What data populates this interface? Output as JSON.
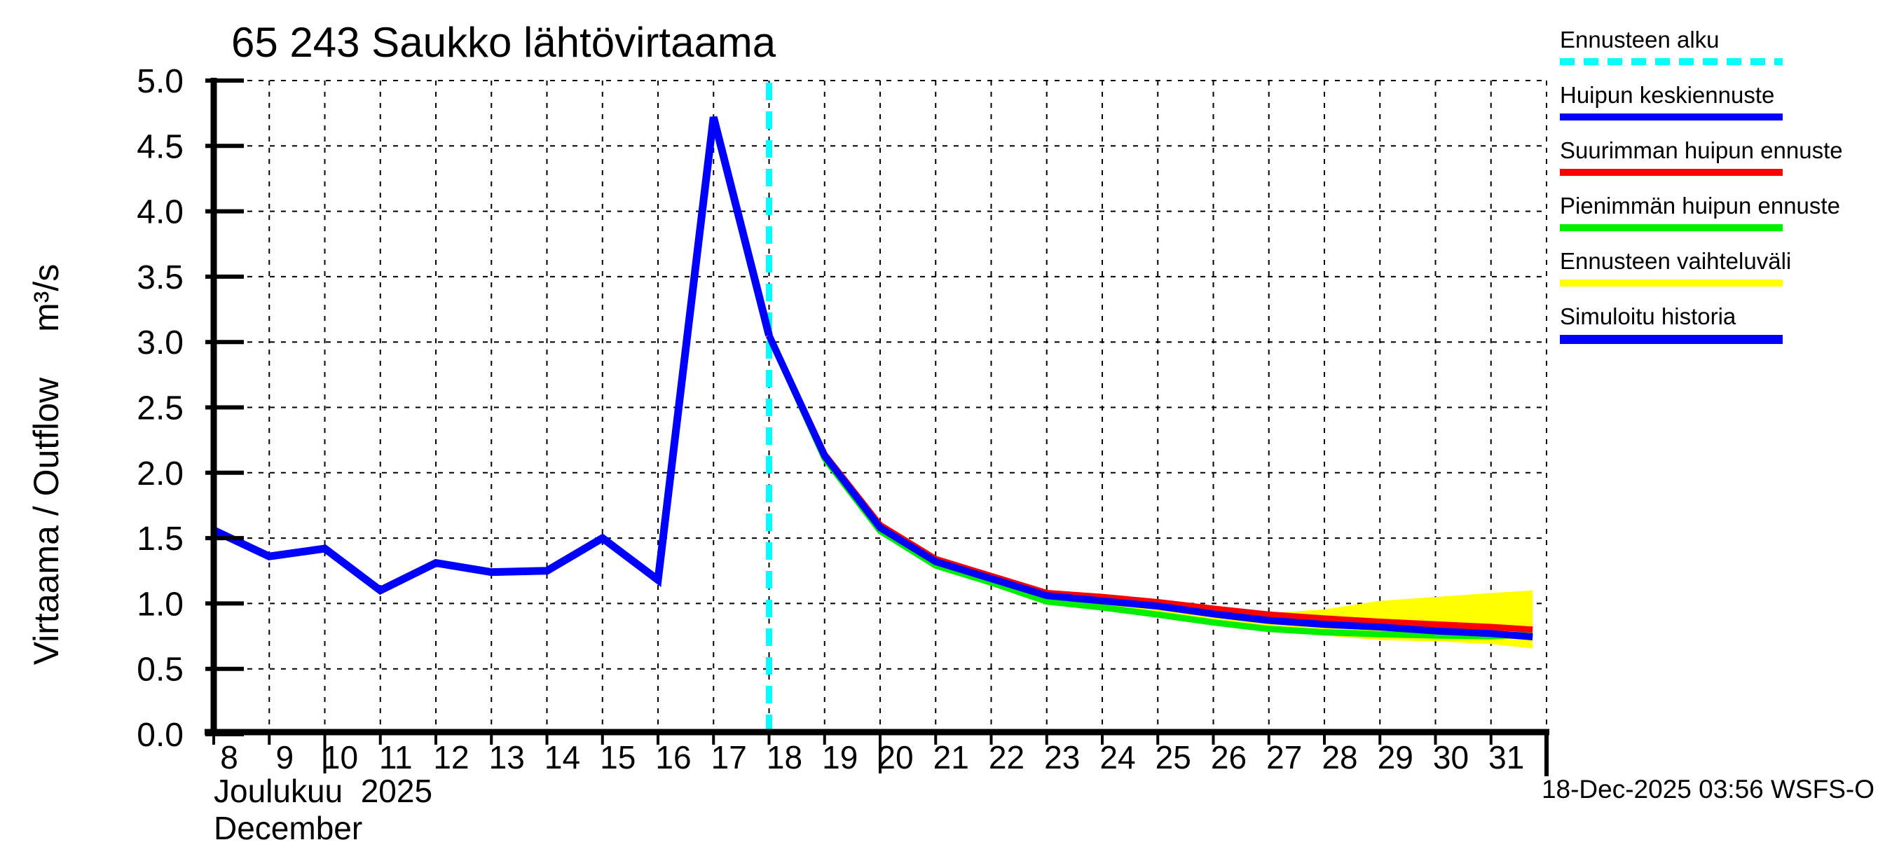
{
  "title": "65 243 Saukko lähtövirtaama",
  "y_axis": {
    "name_part": "Virtaama / Outflow",
    "unit_part": "m³/s"
  },
  "x_axis": {
    "month_line1": "Joulukuu  2025",
    "month_line2": "December"
  },
  "footer": {
    "timestamp": "18-Dec-2025 03:56 WSFS-O"
  },
  "legend": {
    "items": [
      {
        "label": "Ennusteen alku",
        "color": "#00ffff",
        "style": "dashed",
        "thickness": 10
      },
      {
        "label": "Huipun keskiennuste",
        "color": "#0000ff",
        "style": "solid",
        "thickness": 10
      },
      {
        "label": "Suurimman huipun ennuste",
        "color": "#ff0000",
        "style": "solid",
        "thickness": 10
      },
      {
        "label": "Pienimmän huipun ennuste",
        "color": "#00ee00",
        "style": "solid",
        "thickness": 10
      },
      {
        "label": "Ennusteen vaihteluväli",
        "color": "#ffff00",
        "style": "solid",
        "thickness": 10
      },
      {
        "label": "Simuloitu historia",
        "color": "#0000ff",
        "style": "solid",
        "thickness": 13
      }
    ]
  },
  "colors": {
    "axis": "#000000",
    "grid": "#000000",
    "background": "#ffffff"
  },
  "chart_data": {
    "type": "line",
    "title": "65 243 Saukko lähtövirtaama",
    "xlabel": "Joulukuu 2025 / December (day of month)",
    "ylabel": "Virtaama / Outflow m³/s",
    "x_range": [
      8,
      32
    ],
    "y_range": [
      0,
      5
    ],
    "y_tick_step": 0.5,
    "x_ticks": [
      8,
      9,
      10,
      11,
      12,
      13,
      14,
      15,
      16,
      17,
      18,
      19,
      20,
      21,
      22,
      23,
      24,
      25,
      26,
      27,
      28,
      29,
      30,
      31
    ],
    "long_tick_days": [
      10,
      20
    ],
    "grid": true,
    "legend_position": "outside-top-right",
    "forecast_start": {
      "name": "Ennusteen alku",
      "color": "#00ffff",
      "day": 18
    },
    "series": [
      {
        "name": "Simuloitu historia",
        "color": "#0000ff",
        "width": 11,
        "days": [
          8,
          9,
          10,
          11,
          12,
          13,
          14,
          15,
          16,
          17,
          18
        ],
        "values": [
          1.56,
          1.36,
          1.42,
          1.1,
          1.31,
          1.24,
          1.25,
          1.5,
          1.18,
          4.72,
          3.05
        ]
      },
      {
        "name": "Huipun keskiennuste",
        "color": "#0000ff",
        "width": 10,
        "days": [
          18,
          19,
          20,
          21,
          22,
          23,
          24,
          25,
          26,
          27,
          28,
          29,
          30,
          31,
          31.75
        ],
        "values": [
          3.05,
          2.13,
          1.58,
          1.32,
          1.19,
          1.06,
          1.02,
          0.98,
          0.92,
          0.87,
          0.84,
          0.82,
          0.79,
          0.77,
          0.745
        ]
      },
      {
        "name": "Suurimman huipun ennuste",
        "color": "#ff0000",
        "width": 9,
        "days": [
          18,
          19,
          20,
          21,
          22,
          23,
          24,
          25,
          26,
          27,
          28,
          29,
          30,
          31,
          31.75
        ],
        "values": [
          3.05,
          2.14,
          1.6,
          1.34,
          1.21,
          1.08,
          1.05,
          1.01,
          0.96,
          0.915,
          0.885,
          0.86,
          0.84,
          0.82,
          0.8
        ]
      },
      {
        "name": "Pienimmän huipun ennuste",
        "color": "#00ee00",
        "width": 9,
        "days": [
          18,
          19,
          20,
          21,
          22,
          23,
          24,
          25,
          26,
          27,
          28,
          29,
          30,
          31,
          31.75
        ],
        "values": [
          3.05,
          2.11,
          1.555,
          1.29,
          1.16,
          1.015,
          0.97,
          0.915,
          0.855,
          0.805,
          0.78,
          0.765,
          0.755,
          0.75,
          0.765
        ]
      }
    ],
    "range_band": {
      "name": "Ennusteen vaihteluväli",
      "color": "#ffff00",
      "days": [
        20,
        21,
        22,
        23,
        24,
        25,
        26,
        27,
        28,
        29,
        30,
        31,
        31.75
      ],
      "top": [
        1.6,
        1.345,
        1.225,
        1.1,
        1.07,
        1.03,
        0.97,
        0.925,
        0.955,
        1.02,
        1.05,
        1.08,
        1.1
      ],
      "bottom": [
        1.55,
        1.285,
        1.15,
        1.005,
        0.955,
        0.9,
        0.845,
        0.79,
        0.755,
        0.72,
        0.71,
        0.69,
        0.655
      ]
    }
  }
}
